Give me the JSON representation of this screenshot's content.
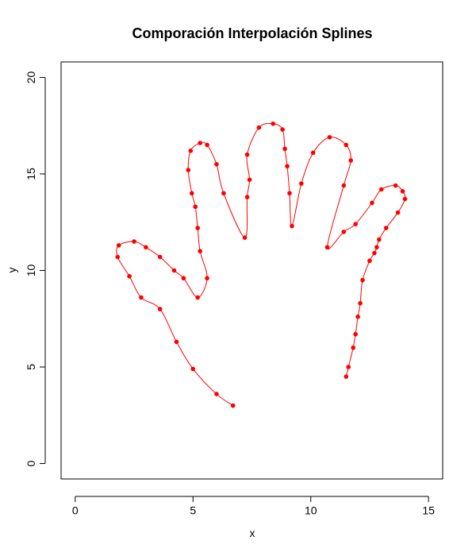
{
  "chart_data": {
    "type": "line",
    "title": "Comporación Interpolación Splines",
    "xlabel": "x",
    "ylabel": "y",
    "xlim": [
      -0.6,
      15.6
    ],
    "ylim": [
      -0.8,
      20.8
    ],
    "x_ticks": [
      0,
      5,
      10,
      15
    ],
    "y_ticks": [
      0,
      5,
      10,
      15,
      20
    ],
    "grid": false,
    "legend": "none",
    "colors": {
      "series": "#ff0000",
      "axis": "#000000"
    },
    "series": [
      {
        "points": [
          [
            6.7,
            3.0
          ],
          [
            6.0,
            3.6
          ],
          [
            5.0,
            4.9
          ],
          [
            4.3,
            6.3
          ],
          [
            3.6,
            8.0
          ],
          [
            2.8,
            8.6
          ],
          [
            2.3,
            9.7
          ],
          [
            1.8,
            10.7
          ],
          [
            1.85,
            11.3
          ],
          [
            2.5,
            11.5
          ],
          [
            3.0,
            11.2
          ],
          [
            3.6,
            10.7
          ],
          [
            4.2,
            10.0
          ],
          [
            4.6,
            9.6
          ],
          [
            5.2,
            8.6
          ],
          [
            5.6,
            9.6
          ],
          [
            5.3,
            11.0
          ],
          [
            5.2,
            12.2
          ],
          [
            5.1,
            13.3
          ],
          [
            4.95,
            14.0
          ],
          [
            4.8,
            15.2
          ],
          [
            4.9,
            16.2
          ],
          [
            5.3,
            16.6
          ],
          [
            5.6,
            16.5
          ],
          [
            6.0,
            15.5
          ],
          [
            6.3,
            14.0
          ],
          [
            7.2,
            11.7
          ],
          [
            7.3,
            13.8
          ],
          [
            7.4,
            14.7
          ],
          [
            7.3,
            16.0
          ],
          [
            7.8,
            17.4
          ],
          [
            8.4,
            17.6
          ],
          [
            8.8,
            17.3
          ],
          [
            8.9,
            16.3
          ],
          [
            9.0,
            15.4
          ],
          [
            9.1,
            14.0
          ],
          [
            9.2,
            12.3
          ],
          [
            9.6,
            14.5
          ],
          [
            10.1,
            16.1
          ],
          [
            10.8,
            16.9
          ],
          [
            11.5,
            16.5
          ],
          [
            11.7,
            15.7
          ],
          [
            11.4,
            14.4
          ],
          [
            10.7,
            11.2
          ],
          [
            11.4,
            12.0
          ],
          [
            11.9,
            12.4
          ],
          [
            12.6,
            13.5
          ],
          [
            13.0,
            14.2
          ],
          [
            13.6,
            14.4
          ],
          [
            13.9,
            14.1
          ],
          [
            14.0,
            13.7
          ],
          [
            13.7,
            13.0
          ],
          [
            13.2,
            12.2
          ],
          [
            12.9,
            11.6
          ],
          [
            12.8,
            11.2
          ],
          [
            12.7,
            10.9
          ],
          [
            12.5,
            10.5
          ],
          [
            12.2,
            9.5
          ],
          [
            12.1,
            8.3
          ],
          [
            12.0,
            7.6
          ],
          [
            11.9,
            6.7
          ],
          [
            11.8,
            6.0
          ],
          [
            11.6,
            5.0
          ],
          [
            11.5,
            4.5
          ]
        ]
      }
    ]
  }
}
